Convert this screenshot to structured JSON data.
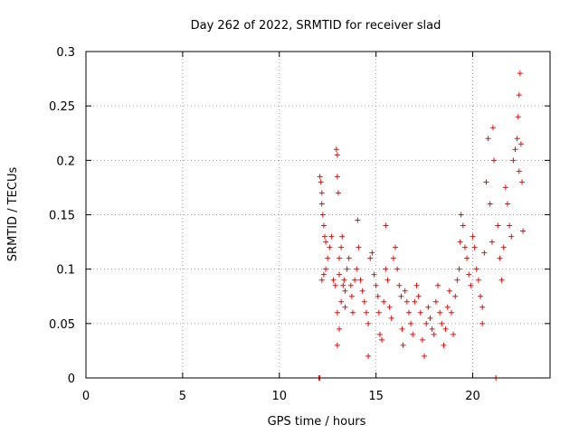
{
  "chart_data": {
    "type": "scatter",
    "title": "Day 262 of 2022, SRMTID for receiver slad",
    "xlabel": "GPS time / hours",
    "ylabel": "SRMTID / TECUs",
    "xlim": [
      0,
      24
    ],
    "ylim": [
      0,
      0.3
    ],
    "grid": true,
    "marker": "+",
    "color": "#ff0000",
    "x_ticks": [
      0,
      5,
      10,
      15,
      20
    ],
    "y_ticks": [
      0,
      0.05,
      0.1,
      0.15,
      0.2,
      0.25,
      0.3
    ],
    "x_tick_labels": [
      "0",
      "5",
      "10",
      "15",
      "20"
    ],
    "y_tick_labels": [
      "0",
      "0.05",
      "0.1",
      "0.15",
      "0.2",
      "0.25",
      "0.3"
    ],
    "series": [
      {
        "name": "SRMTID",
        "points": [
          [
            12.05,
            0.0
          ],
          [
            12.1,
            0.0
          ],
          [
            12.1,
            0.185
          ],
          [
            12.15,
            0.18
          ],
          [
            12.2,
            0.17
          ],
          [
            12.2,
            0.16
          ],
          [
            12.25,
            0.15
          ],
          [
            12.3,
            0.14
          ],
          [
            12.35,
            0.13
          ],
          [
            12.4,
            0.125
          ],
          [
            12.2,
            0.09
          ],
          [
            12.3,
            0.095
          ],
          [
            12.4,
            0.1
          ],
          [
            12.5,
            0.11
          ],
          [
            12.6,
            0.12
          ],
          [
            12.7,
            0.13
          ],
          [
            12.8,
            0.09
          ],
          [
            12.9,
            0.085
          ],
          [
            12.95,
            0.21
          ],
          [
            13.0,
            0.205
          ],
          [
            13.0,
            0.185
          ],
          [
            13.05,
            0.17
          ],
          [
            13.1,
            0.11
          ],
          [
            13.1,
            0.095
          ],
          [
            13.2,
            0.12
          ],
          [
            13.25,
            0.13
          ],
          [
            13.3,
            0.085
          ],
          [
            13.35,
            0.09
          ],
          [
            13.4,
            0.08
          ],
          [
            13.0,
            0.06
          ],
          [
            13.1,
            0.045
          ],
          [
            13.0,
            0.03
          ],
          [
            13.2,
            0.07
          ],
          [
            13.4,
            0.065
          ],
          [
            13.5,
            0.1
          ],
          [
            13.6,
            0.11
          ],
          [
            13.7,
            0.085
          ],
          [
            13.75,
            0.075
          ],
          [
            13.8,
            0.06
          ],
          [
            13.9,
            0.09
          ],
          [
            14.0,
            0.1
          ],
          [
            14.05,
            0.145
          ],
          [
            14.1,
            0.12
          ],
          [
            14.2,
            0.09
          ],
          [
            14.3,
            0.08
          ],
          [
            14.4,
            0.07
          ],
          [
            14.5,
            0.06
          ],
          [
            14.6,
            0.05
          ],
          [
            14.6,
            0.02
          ],
          [
            14.7,
            0.11
          ],
          [
            14.8,
            0.115
          ],
          [
            14.9,
            0.095
          ],
          [
            15.0,
            0.085
          ],
          [
            15.1,
            0.075
          ],
          [
            15.15,
            0.06
          ],
          [
            15.2,
            0.04
          ],
          [
            15.3,
            0.035
          ],
          [
            15.4,
            0.07
          ],
          [
            15.5,
            0.14
          ],
          [
            15.5,
            0.1
          ],
          [
            15.6,
            0.09
          ],
          [
            15.7,
            0.065
          ],
          [
            15.8,
            0.055
          ],
          [
            15.9,
            0.11
          ],
          [
            16.0,
            0.12
          ],
          [
            16.1,
            0.1
          ],
          [
            16.2,
            0.085
          ],
          [
            16.3,
            0.075
          ],
          [
            16.35,
            0.045
          ],
          [
            16.4,
            0.03
          ],
          [
            16.5,
            0.08
          ],
          [
            16.6,
            0.07
          ],
          [
            16.7,
            0.06
          ],
          [
            16.8,
            0.05
          ],
          [
            16.9,
            0.04
          ],
          [
            17.0,
            0.07
          ],
          [
            17.1,
            0.085
          ],
          [
            17.2,
            0.075
          ],
          [
            17.3,
            0.06
          ],
          [
            17.4,
            0.035
          ],
          [
            17.5,
            0.02
          ],
          [
            17.6,
            0.05
          ],
          [
            17.7,
            0.065
          ],
          [
            17.8,
            0.055
          ],
          [
            17.9,
            0.045
          ],
          [
            18.0,
            0.04
          ],
          [
            18.1,
            0.07
          ],
          [
            18.2,
            0.085
          ],
          [
            18.3,
            0.06
          ],
          [
            18.4,
            0.05
          ],
          [
            18.5,
            0.03
          ],
          [
            18.6,
            0.045
          ],
          [
            18.7,
            0.065
          ],
          [
            18.8,
            0.08
          ],
          [
            18.9,
            0.06
          ],
          [
            19.0,
            0.04
          ],
          [
            19.1,
            0.075
          ],
          [
            19.2,
            0.09
          ],
          [
            19.3,
            0.1
          ],
          [
            19.35,
            0.125
          ],
          [
            19.4,
            0.15
          ],
          [
            19.5,
            0.14
          ],
          [
            19.6,
            0.12
          ],
          [
            19.7,
            0.11
          ],
          [
            19.8,
            0.095
          ],
          [
            19.9,
            0.085
          ],
          [
            20.0,
            0.13
          ],
          [
            20.1,
            0.12
          ],
          [
            20.2,
            0.1
          ],
          [
            20.3,
            0.09
          ],
          [
            20.4,
            0.075
          ],
          [
            20.5,
            0.065
          ],
          [
            20.5,
            0.05
          ],
          [
            20.6,
            0.115
          ],
          [
            20.7,
            0.18
          ],
          [
            20.8,
            0.22
          ],
          [
            20.9,
            0.16
          ],
          [
            21.0,
            0.125
          ],
          [
            21.05,
            0.23
          ],
          [
            21.1,
            0.2
          ],
          [
            21.2,
            0.0
          ],
          [
            21.3,
            0.14
          ],
          [
            21.4,
            0.11
          ],
          [
            21.5,
            0.09
          ],
          [
            21.6,
            0.12
          ],
          [
            21.7,
            0.175
          ],
          [
            21.8,
            0.16
          ],
          [
            21.9,
            0.14
          ],
          [
            22.0,
            0.13
          ],
          [
            22.1,
            0.2
          ],
          [
            22.2,
            0.21
          ],
          [
            22.3,
            0.22
          ],
          [
            22.35,
            0.24
          ],
          [
            22.4,
            0.19
          ],
          [
            22.4,
            0.26
          ],
          [
            22.45,
            0.28
          ],
          [
            22.5,
            0.215
          ],
          [
            22.55,
            0.18
          ],
          [
            22.6,
            0.135
          ]
        ]
      }
    ]
  }
}
